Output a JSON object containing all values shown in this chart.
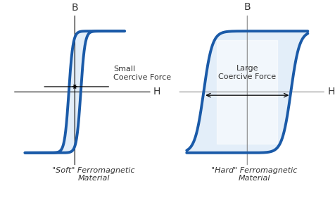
{
  "background_color": "#ffffff",
  "loop_color": "#1a5aa8",
  "loop_lw": 2.8,
  "fill_color": "#c8dff5",
  "fill_alpha": 0.5,
  "soft_title": "\"Soft\" Ferromagnetic\nMaterial",
  "hard_title": "\"Hard\" Ferromagnetic\nMaterial",
  "soft_coercive_label": "Small\nCoercive Force",
  "hard_coercive_label": "Large\nCoercive Force",
  "axis_label_B": "B",
  "axis_label_H": "H",
  "soft_hc": 0.12,
  "hard_hc": 0.72,
  "bsat": 0.92,
  "font_size_label": 8,
  "font_size_axis": 10,
  "font_size_title": 8,
  "text_color": "#333333",
  "axis_color_soft": "#000000",
  "axis_color_hard": "#888888"
}
